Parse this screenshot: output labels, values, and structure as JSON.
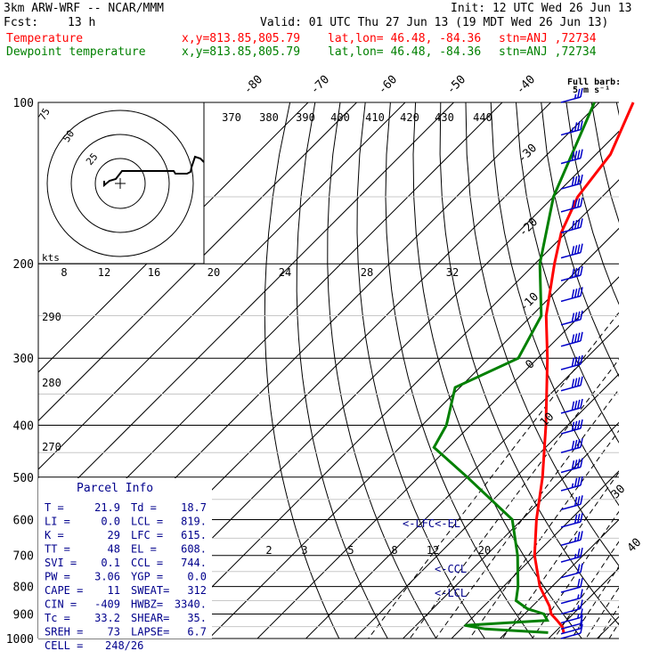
{
  "header": {
    "model": "3km ARW-WRF -- NCAR/MMM",
    "init": "Init: 12 UTC Wed 26 Jun 13",
    "fcst_label": "Fcst:",
    "fcst_value": "13 h",
    "valid": "Valid: 01 UTC Thu 27 Jun 13 (19 MDT Wed 26 Jun 13)",
    "temperature_legend": {
      "label": "Temperature",
      "xy": "x,y=813.85,805.79",
      "latlon": "lat,lon= 46.48, -84.36",
      "stn": "stn=ANJ ,72734"
    },
    "dewpoint_legend": {
      "label": "Dewpoint temperature",
      "xy": "x,y=813.85,805.79",
      "latlon": "lat,lon= 46.48, -84.36",
      "stn": "stn=ANJ ,72734"
    }
  },
  "colors": {
    "temperature": "#ff0000",
    "dewpoint": "#008000",
    "wind_barb": "#0000c8",
    "parcel": "#00008c"
  },
  "barb_legend": {
    "line1": "Full barb:",
    "line2": "5 m s⁻¹"
  },
  "hodograph": {
    "ring_labels": [
      "75",
      "50",
      "25"
    ],
    "units": "kts"
  },
  "parcel_info": {
    "title": "Parcel Info",
    "rows": [
      [
        "T  =",
        "21.9",
        "Td =",
        "18.7"
      ],
      [
        "LI =",
        "0.0",
        "LCL =",
        "819."
      ],
      [
        "K  =",
        "29",
        "LFC =",
        "615."
      ],
      [
        "TT =",
        "48",
        "EL =",
        "608."
      ],
      [
        "SVI =",
        "0.1",
        "CCL =",
        "744."
      ],
      [
        "PW =",
        "3.06",
        "YGP =",
        "0.0"
      ],
      [
        "CAPE =",
        "11",
        "SWEAT=",
        "312"
      ],
      [
        "CIN =",
        "-409",
        "HWBZ=",
        "3340."
      ],
      [
        "Tc =",
        "33.2",
        "SHEAR=",
        "35."
      ],
      [
        "SREH =",
        "73",
        "LAPSE=",
        "6.7"
      ],
      [
        "CELL =",
        "248/26",
        "",
        ""
      ]
    ]
  },
  "chart_data": {
    "type": "line",
    "title": "Skew-T log-p diagram",
    "xlabel": "",
    "ylabel": "",
    "pressure_ticks": [
      "100",
      "200",
      "300",
      "400",
      "500",
      "600",
      "700",
      "800",
      "900",
      "1000"
    ],
    "theta_labels": [
      "370",
      "380",
      "390",
      "400",
      "410",
      "420",
      "430",
      "440"
    ],
    "theta_low_labels": [
      "290",
      "280",
      "270"
    ],
    "isotherm_labels_top": [
      "-80",
      "-70",
      "-60",
      "-50",
      "-40"
    ],
    "isotherm_labels_right": [
      "-30",
      "-20",
      "-10",
      "0",
      "10",
      "30",
      "40"
    ],
    "mixing_ratio_labels_upper": [
      "8",
      "12",
      "16",
      "20",
      "24",
      "28",
      "32"
    ],
    "mixing_ratio_labels_lower": [
      "2",
      "3",
      "5",
      "8",
      "12",
      "20"
    ],
    "level_markers": [
      "<-LFC<-EL",
      "<-CCL",
      "<-LCL"
    ],
    "series": [
      {
        "name": "Temperature",
        "pressure_hPa": [
          975,
          952,
          925,
          900,
          870,
          800,
          700,
          600,
          500,
          400,
          300,
          250,
          200,
          175,
          150,
          125,
          100
        ],
        "temp_C": [
          21.9,
          20.5,
          18.0,
          15.5,
          13.5,
          7.5,
          0.0,
          -7.0,
          -14.5,
          -24.5,
          -38.0,
          -47.0,
          -56.0,
          -61.0,
          -65.0,
          -67.0,
          -73.0
        ]
      },
      {
        "name": "Dewpoint temperature",
        "pressure_hPa": [
          975,
          960,
          945,
          925,
          900,
          880,
          850,
          800,
          700,
          600,
          500,
          440,
          400,
          340,
          300,
          250,
          200,
          150,
          100
        ],
        "temp_C": [
          18.7,
          5.0,
          0.0,
          16.0,
          14.0,
          9.5,
          5.5,
          3.0,
          -3.5,
          -12.0,
          -30.0,
          -43.0,
          -45.0,
          -51.0,
          -44.0,
          -48.0,
          -59.0,
          -70.0,
          -81.0
        ]
      }
    ],
    "wind_barbs": [
      {
        "p": 100,
        "spd": 25
      },
      {
        "p": 115,
        "spd": 35
      },
      {
        "p": 130,
        "spd": 40
      },
      {
        "p": 145,
        "spd": 40
      },
      {
        "p": 160,
        "spd": 40
      },
      {
        "p": 175,
        "spd": 40
      },
      {
        "p": 195,
        "spd": 40
      },
      {
        "p": 215,
        "spd": 40
      },
      {
        "p": 235,
        "spd": 40
      },
      {
        "p": 260,
        "spd": 40
      },
      {
        "p": 285,
        "spd": 40
      },
      {
        "p": 315,
        "spd": 40
      },
      {
        "p": 345,
        "spd": 40
      },
      {
        "p": 380,
        "spd": 40
      },
      {
        "p": 415,
        "spd": 40
      },
      {
        "p": 450,
        "spd": 40
      },
      {
        "p": 490,
        "spd": 40
      },
      {
        "p": 530,
        "spd": 35
      },
      {
        "p": 575,
        "spd": 30
      },
      {
        "p": 620,
        "spd": 30
      },
      {
        "p": 670,
        "spd": 25
      },
      {
        "p": 720,
        "spd": 25
      },
      {
        "p": 770,
        "spd": 20
      },
      {
        "p": 820,
        "spd": 20
      },
      {
        "p": 860,
        "spd": 15
      },
      {
        "p": 900,
        "spd": 15
      },
      {
        "p": 935,
        "spd": 15
      },
      {
        "p": 960,
        "spd": 10
      },
      {
        "p": 980,
        "spd": 10
      },
      {
        "p": 1000,
        "spd": 10
      }
    ],
    "hodograph_trace": [
      [
        -18,
        -3
      ],
      [
        -18,
        2
      ],
      [
        -12,
        -3
      ],
      [
        -5,
        -5
      ],
      [
        2,
        -14
      ],
      [
        10,
        -14
      ],
      [
        20,
        -14
      ],
      [
        28,
        -14
      ],
      [
        35,
        -14
      ],
      [
        48,
        -14
      ],
      [
        55,
        -14
      ],
      [
        60,
        -14
      ],
      [
        62,
        -11
      ],
      [
        66,
        -11
      ],
      [
        70,
        -11
      ],
      [
        75,
        -11
      ],
      [
        79,
        -13
      ],
      [
        80,
        -18
      ],
      [
        82,
        -24
      ],
      [
        84,
        -30
      ],
      [
        90,
        -28
      ],
      [
        94,
        -24
      ]
    ]
  }
}
